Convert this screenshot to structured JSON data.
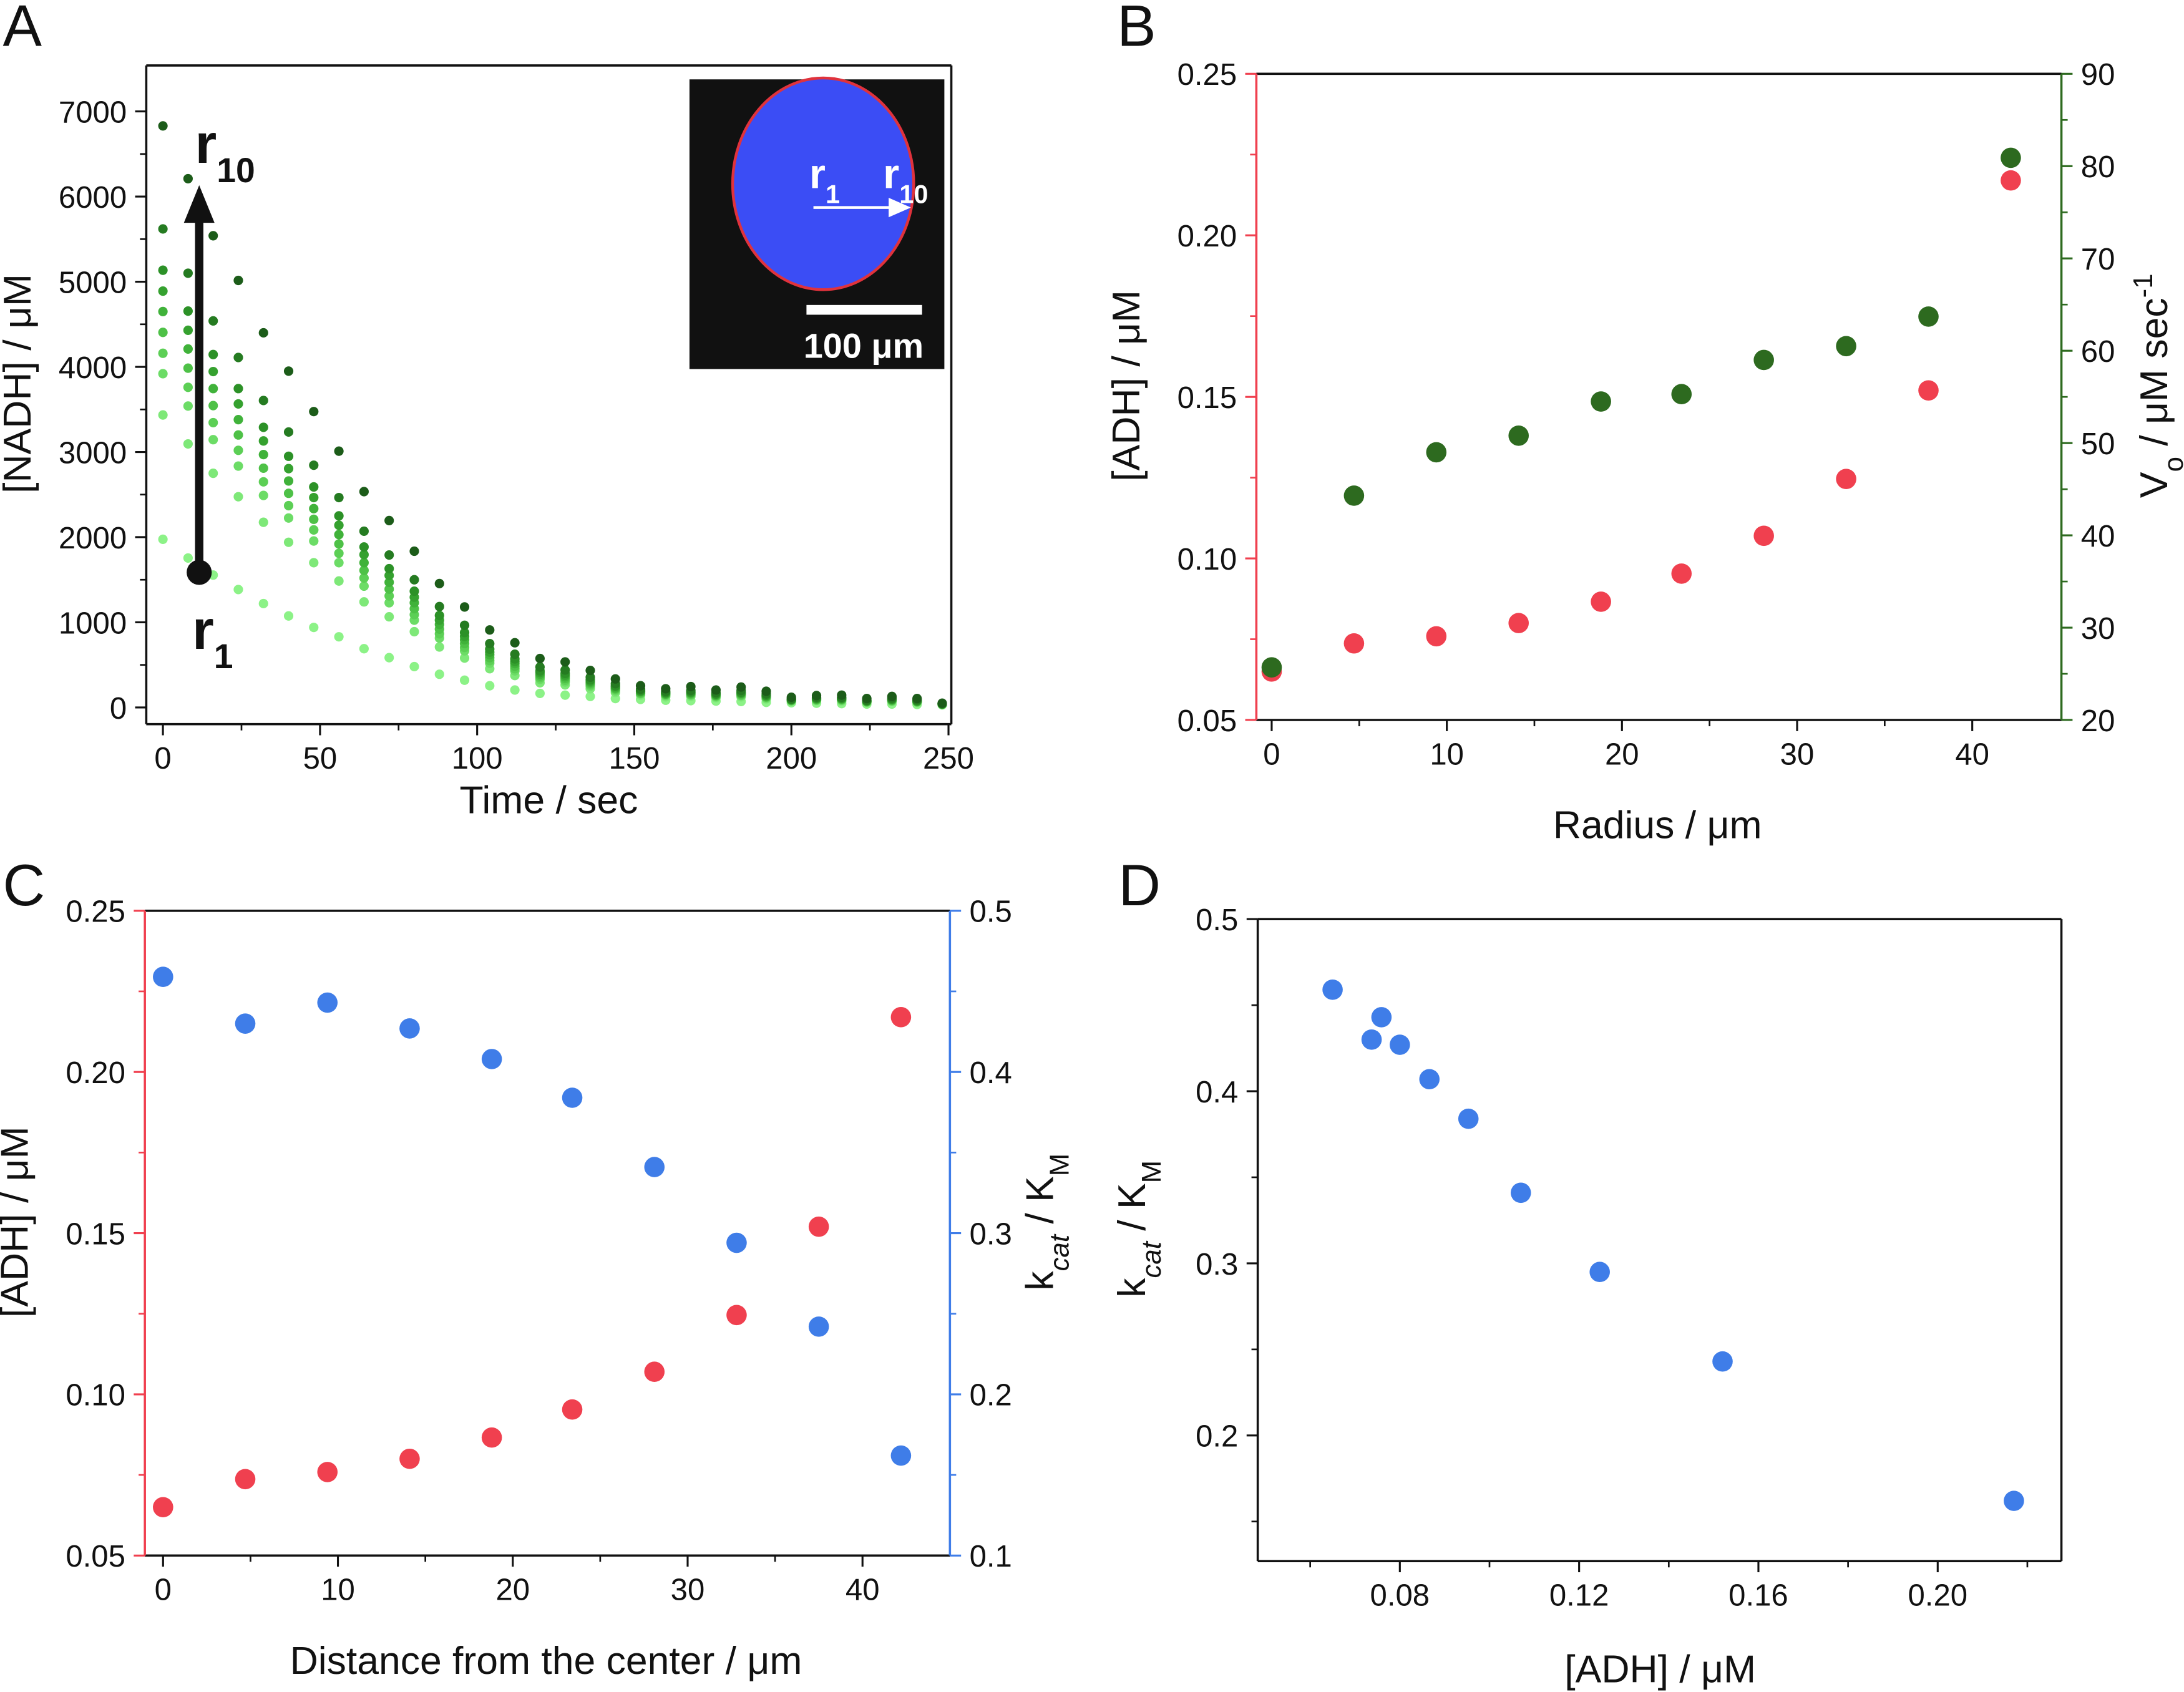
{
  "panel_letters": [
    "A",
    "B",
    "C",
    "D"
  ],
  "chart_data": [
    {
      "panel": "A",
      "type": "scatter",
      "xlabel": [
        {
          "t": "Time / sec"
        }
      ],
      "ylabel_left": [
        {
          "t": "[NADH] / μM"
        }
      ],
      "xlim": [
        -5.3,
        250.9
      ],
      "xticks": [
        "0",
        "50",
        "100",
        "150",
        "200",
        "250"
      ],
      "xminor": [
        25,
        75,
        125,
        175,
        225
      ],
      "left_axis": {
        "lim": [
          -196,
          7540
        ],
        "ticks": [
          "0",
          "1000",
          "2000",
          "3000",
          "4000",
          "5000",
          "6000",
          "7000"
        ],
        "minor": [
          500,
          1500,
          2500,
          3500,
          4500,
          5500,
          6500
        ],
        "color": "#111111"
      },
      "x": [
        0,
        8,
        16,
        24,
        32,
        40,
        48,
        56,
        64,
        72,
        80,
        88,
        96,
        104,
        112,
        120,
        128,
        136,
        144,
        152,
        160,
        168,
        176,
        184,
        192,
        200,
        208,
        216,
        224,
        232,
        240,
        248
      ],
      "series": [
        {
          "name": "r1",
          "color": "#8cf287",
          "y": [
            1975,
            1755,
            1555,
            1385,
            1220,
            1075,
            940,
            830,
            690,
            585,
            480,
            390,
            320,
            255,
            205,
            165,
            145,
            130,
            105,
            95,
            85,
            80,
            75,
            70,
            60,
            55,
            50,
            45,
            40,
            40,
            35,
            30
          ]
        },
        {
          "name": "r2",
          "color": "#7ee878",
          "y": [
            3435,
            3095,
            2750,
            2475,
            2175,
            1940,
            1700,
            1485,
            1240,
            1065,
            890,
            710,
            580,
            455,
            375,
            290,
            265,
            220,
            175,
            145,
            125,
            130,
            115,
            125,
            100,
            75,
            80,
            75,
            60,
            70,
            60,
            35
          ]
        },
        {
          "name": "r3",
          "color": "#6cdc66",
          "y": [
            3920,
            3540,
            3145,
            2835,
            2490,
            2225,
            1955,
            1700,
            1425,
            1230,
            1025,
            815,
            665,
            520,
            430,
            330,
            300,
            250,
            195,
            160,
            140,
            145,
            125,
            140,
            110,
            80,
            85,
            85,
            65,
            75,
            65,
            40
          ]
        },
        {
          "name": "r4",
          "color": "#5ccf55",
          "y": [
            4160,
            3760,
            3345,
            3020,
            2650,
            2370,
            2085,
            1810,
            1520,
            1310,
            1090,
            865,
            705,
            550,
            455,
            350,
            320,
            265,
            210,
            165,
            150,
            150,
            135,
            145,
            120,
            80,
            90,
            90,
            65,
            80,
            65,
            40
          ]
        },
        {
          "name": "r5",
          "color": "#4ec147",
          "y": [
            4405,
            3985,
            3545,
            3200,
            2810,
            2515,
            2210,
            1920,
            1610,
            1390,
            1160,
            920,
            750,
            585,
            485,
            370,
            340,
            280,
            220,
            175,
            155,
            160,
            140,
            155,
            125,
            85,
            95,
            95,
            70,
            85,
            70,
            40
          ]
        },
        {
          "name": "r6",
          "color": "#40b23a",
          "y": [
            4650,
            4210,
            3745,
            3380,
            2970,
            2660,
            2335,
            2030,
            1700,
            1470,
            1230,
            975,
            795,
            620,
            515,
            390,
            360,
            295,
            230,
            185,
            160,
            170,
            145,
            165,
            130,
            90,
            100,
            100,
            75,
            90,
            75,
            40
          ]
        },
        {
          "name": "r7",
          "color": "#35a12f",
          "y": [
            4890,
            4430,
            3945,
            3565,
            3130,
            2805,
            2465,
            2140,
            1795,
            1550,
            1295,
            1025,
            835,
            650,
            540,
            410,
            380,
            310,
            245,
            190,
            170,
            175,
            155,
            170,
            140,
            90,
            105,
            105,
            75,
            95,
            75,
            40
          ]
        },
        {
          "name": "r8",
          "color": "#2c9127",
          "y": [
            5135,
            4655,
            4145,
            3745,
            3290,
            2950,
            2590,
            2250,
            1885,
            1630,
            1365,
            1080,
            880,
            685,
            570,
            430,
            400,
            325,
            255,
            200,
            175,
            185,
            160,
            180,
            145,
            95,
            110,
            110,
            80,
            100,
            80,
            40
          ]
        },
        {
          "name": "r9",
          "color": "#257b21",
          "y": [
            5620,
            5100,
            4540,
            4110,
            3605,
            3235,
            2845,
            2465,
            2070,
            1790,
            1500,
            1185,
            965,
            750,
            625,
            475,
            440,
            355,
            280,
            215,
            190,
            200,
            175,
            200,
            160,
            100,
            120,
            120,
            85,
            110,
            90,
            45
          ]
        },
        {
          "name": "r10",
          "color": "#1c5c19",
          "y": [
            6830,
            6210,
            5540,
            5015,
            4400,
            3950,
            3475,
            3010,
            2535,
            2195,
            1835,
            1455,
            1180,
            910,
            760,
            575,
            535,
            435,
            335,
            255,
            220,
            245,
            205,
            240,
            190,
            120,
            140,
            145,
            105,
            130,
            105,
            50
          ]
        }
      ],
      "annotations": {
        "r10": {
          "main": "r",
          "sub": "10"
        },
        "r1": {
          "main": "r",
          "sub": "1"
        }
      },
      "inset": {
        "r1": {
          "main": "r",
          "sub": "1"
        },
        "r10": {
          "main": "r",
          "sub": "10"
        },
        "scale_bar": "100 μm",
        "bg": "#111111",
        "droplet": "#3b4df5",
        "rim": "#e0323c"
      }
    },
    {
      "panel": "B",
      "type": "scatter",
      "xlabel": [
        {
          "t": "Radius / μm"
        }
      ],
      "ylabel_left": [
        {
          "t": "[ADH] / μM"
        }
      ],
      "ylabel_right": [
        {
          "t": "V"
        },
        {
          "t": "o",
          "s": "sub"
        },
        {
          "t": " / μM sec"
        },
        {
          "t": "-1",
          "s": "sup"
        }
      ],
      "xlim": [
        -0.875,
        45.09
      ],
      "xticks": [
        "0",
        "10",
        "20",
        "30",
        "40"
      ],
      "xminor": [
        5,
        15,
        25,
        35
      ],
      "left_axis": {
        "lim": [
          0.05,
          0.25
        ],
        "ticks": [
          "0.05",
          "0.10",
          "0.15",
          "0.20",
          "0.25"
        ],
        "minor": [
          0.075,
          0.125,
          0.175,
          0.225
        ],
        "color": "#f0404f"
      },
      "right_axis": {
        "lim": [
          20,
          90
        ],
        "ticks": [
          "20",
          "30",
          "40",
          "50",
          "60",
          "70",
          "80",
          "90"
        ],
        "minor": [
          25,
          35,
          45,
          55,
          65,
          75,
          85
        ],
        "color": "#2d6a1f"
      },
      "x": [
        0,
        4.7,
        9.4,
        14.1,
        18.8,
        23.4,
        28.1,
        32.8,
        37.5,
        42.2
      ],
      "series": [
        {
          "name": "[ADH]",
          "axis": "left",
          "color": "#f0404f",
          "y": [
            0.065,
            0.0737,
            0.0759,
            0.08,
            0.0866,
            0.0953,
            0.107,
            0.1246,
            0.152,
            0.217
          ]
        },
        {
          "name": "Vo",
          "axis": "right",
          "color": "#2d6a1f",
          "y": [
            25.7,
            44.3,
            49.0,
            50.8,
            54.5,
            55.3,
            59.0,
            60.5,
            63.7,
            80.9
          ]
        }
      ]
    },
    {
      "panel": "C",
      "type": "scatter",
      "xlabel": [
        {
          "t": "Distance from the center / μm"
        }
      ],
      "ylabel_left": [
        {
          "t": "[ADH] / μM"
        }
      ],
      "ylabel_right": [
        {
          "t": "k"
        },
        {
          "t": "cat",
          "s": "sub",
          "i": true
        },
        {
          "t": " / K"
        },
        {
          "t": "M",
          "s": "sub"
        }
      ],
      "xlim": [
        -1.04,
        45.0
      ],
      "xticks": [
        "0",
        "10",
        "20",
        "30",
        "40"
      ],
      "xminor": [
        5,
        15,
        25,
        35
      ],
      "left_axis": {
        "lim": [
          0.05,
          0.25
        ],
        "ticks": [
          "0.05",
          "0.10",
          "0.15",
          "0.20",
          "0.25"
        ],
        "minor": [
          0.075,
          0.125,
          0.175,
          0.225
        ],
        "color": "#f0404f"
      },
      "right_axis": {
        "lim": [
          0.1,
          0.5
        ],
        "ticks": [
          "0.1",
          "0.2",
          "0.3",
          "0.4",
          "0.5"
        ],
        "minor": [
          0.15,
          0.25,
          0.35,
          0.45
        ],
        "color": "#3f7de8"
      },
      "x": [
        0,
        4.7,
        9.4,
        14.1,
        18.8,
        23.4,
        28.1,
        32.8,
        37.5,
        42.2
      ],
      "series": [
        {
          "name": "[ADH]",
          "axis": "left",
          "color": "#f0404f",
          "y": [
            0.065,
            0.0737,
            0.0759,
            0.08,
            0.0866,
            0.0953,
            0.107,
            0.1246,
            0.152,
            0.217
          ]
        },
        {
          "name": "kcat/KM",
          "axis": "right",
          "color": "#3f7de8",
          "y": [
            0.459,
            0.43,
            0.443,
            0.427,
            0.408,
            0.384,
            0.341,
            0.294,
            0.242,
            0.162
          ]
        }
      ]
    },
    {
      "panel": "D",
      "type": "scatter",
      "xlabel": [
        {
          "t": "[ADH] / μM"
        }
      ],
      "ylabel_left": [
        {
          "t": "k"
        },
        {
          "t": "cat",
          "s": "sub",
          "i": true
        },
        {
          "t": " / K"
        },
        {
          "t": "M",
          "s": "sub"
        }
      ],
      "xlim": [
        0.0483,
        0.2276
      ],
      "xticks": [
        "0.08",
        "0.12",
        "0.16",
        "0.20"
      ],
      "xminor": [
        0.06,
        0.1,
        0.14,
        0.18,
        0.22
      ],
      "left_axis": {
        "lim": [
          0.127,
          0.5
        ],
        "ticks": [
          "0.2",
          "0.3",
          "0.4",
          "0.5"
        ],
        "minor": [
          0.15,
          0.25,
          0.35,
          0.45
        ],
        "color": "#111111"
      },
      "x": [
        0.065,
        0.0737,
        0.0759,
        0.08,
        0.0866,
        0.0953,
        0.107,
        0.1246,
        0.152,
        0.217
      ],
      "series": [
        {
          "name": "kcat/KM",
          "axis": "left",
          "color": "#3f7de8",
          "y": [
            0.459,
            0.43,
            0.443,
            0.427,
            0.407,
            0.384,
            0.341,
            0.295,
            0.243,
            0.162
          ]
        }
      ]
    }
  ]
}
